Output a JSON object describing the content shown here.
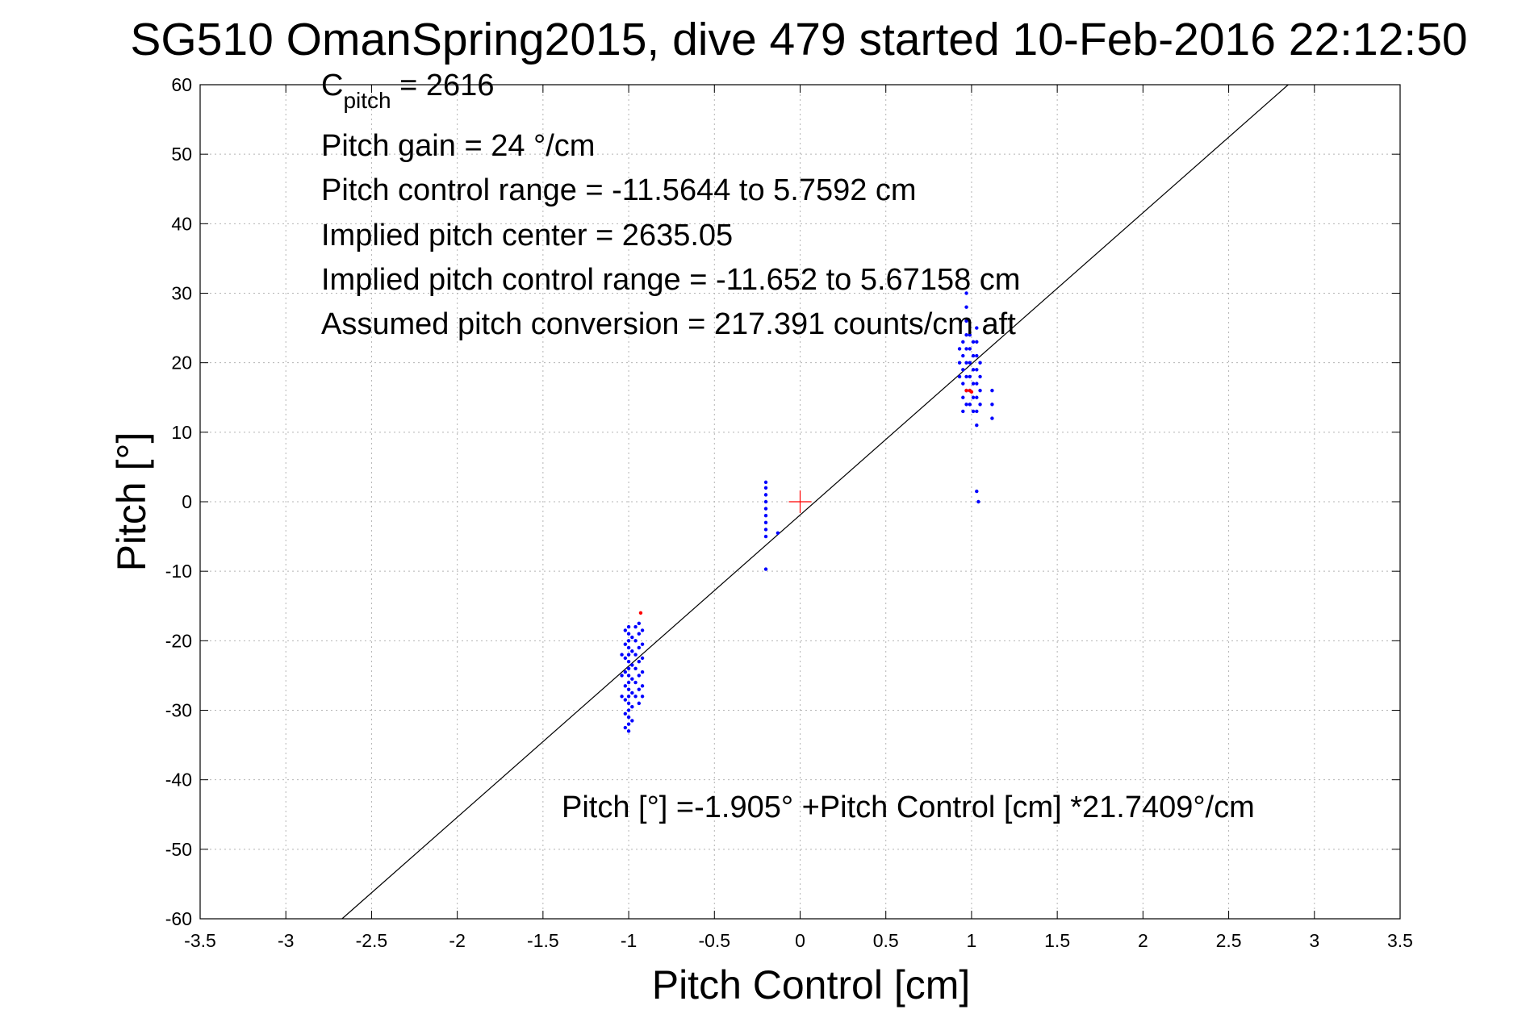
{
  "chart_data": {
    "type": "scatter",
    "title": "SG510 OmanSpring2015, dive 479 started 10-Feb-2016 22:12:50",
    "xlabel": "Pitch Control [cm]",
    "ylabel": "Pitch [°]",
    "xlim": [
      -3.5,
      3.5
    ],
    "ylim": [
      -60,
      60
    ],
    "x_ticks": [
      -3.5,
      -3,
      -2.5,
      -2,
      -1.5,
      -1,
      -0.5,
      0,
      0.5,
      1,
      1.5,
      2,
      2.5,
      3,
      3.5
    ],
    "x_tick_labels": [
      "-3.5",
      "-3",
      "-2.5",
      "-2",
      "-1.5",
      "-1",
      "-0.5",
      "0",
      "0.5",
      "1",
      "1.5",
      "2",
      "2.5",
      "3",
      "3.5"
    ],
    "y_ticks": [
      60,
      50,
      40,
      30,
      20,
      10,
      0,
      -10,
      -20,
      -30,
      -40,
      -50,
      -60
    ],
    "y_tick_labels": [
      "60",
      "50",
      "40",
      "30",
      "20",
      "10",
      "0",
      "-10",
      "-20",
      "-30",
      "-40",
      "-50",
      "-60"
    ],
    "grid": true,
    "fit_line": {
      "intercept": -1.905,
      "slope": 21.7409,
      "color": "#000000"
    },
    "center_marker": {
      "x": 0,
      "y": 0,
      "marker": "plus",
      "color": "#ff0000"
    },
    "series": [
      {
        "color": "#0000ff",
        "marker": "dot",
        "points": [
          [
            -1.0,
            -33.0
          ],
          [
            -1.0,
            -32.0
          ],
          [
            -1.0,
            -31.0
          ],
          [
            -1.0,
            -30.0
          ],
          [
            -1.0,
            -29.0
          ],
          [
            -1.0,
            -28.0
          ],
          [
            -1.0,
            -27.0
          ],
          [
            -1.0,
            -26.0
          ],
          [
            -1.0,
            -25.0
          ],
          [
            -1.0,
            -24.0
          ],
          [
            -1.0,
            -23.0
          ],
          [
            -1.0,
            -22.0
          ],
          [
            -1.0,
            -21.0
          ],
          [
            -1.0,
            -20.0
          ],
          [
            -1.0,
            -19.0
          ],
          [
            -1.0,
            -18.0
          ],
          [
            -1.02,
            -32.5
          ],
          [
            -1.02,
            -30.5
          ],
          [
            -1.02,
            -28.5
          ],
          [
            -1.02,
            -26.5
          ],
          [
            -1.02,
            -24.5
          ],
          [
            -1.02,
            -22.5
          ],
          [
            -1.02,
            -20.5
          ],
          [
            -1.02,
            -18.5
          ],
          [
            -0.98,
            -31.5
          ],
          [
            -0.98,
            -29.5
          ],
          [
            -0.98,
            -27.5
          ],
          [
            -0.98,
            -25.5
          ],
          [
            -0.98,
            -23.5
          ],
          [
            -0.98,
            -21.5
          ],
          [
            -0.98,
            -19.5
          ],
          [
            -0.96,
            -28.0
          ],
          [
            -0.96,
            -26.0
          ],
          [
            -0.96,
            -24.0
          ],
          [
            -0.96,
            -22.0
          ],
          [
            -0.96,
            -20.0
          ],
          [
            -0.96,
            -18.0
          ],
          [
            -0.94,
            -29.0
          ],
          [
            -0.94,
            -27.0
          ],
          [
            -0.94,
            -25.0
          ],
          [
            -0.94,
            -23.0
          ],
          [
            -0.94,
            -21.0
          ],
          [
            -0.94,
            -19.0
          ],
          [
            -0.94,
            -17.5
          ],
          [
            -0.92,
            -28.0
          ],
          [
            -0.92,
            -26.5
          ],
          [
            -0.92,
            -24.5
          ],
          [
            -0.92,
            -22.5
          ],
          [
            -0.92,
            -20.5
          ],
          [
            -0.92,
            -18.5
          ],
          [
            -1.04,
            -28.0
          ],
          [
            -1.04,
            -25.0
          ],
          [
            -1.04,
            -22.0
          ],
          [
            -0.2,
            -9.7
          ],
          [
            -0.2,
            -5.0
          ],
          [
            -0.2,
            -4.0
          ],
          [
            -0.2,
            -3.0
          ],
          [
            -0.2,
            -2.0
          ],
          [
            -0.2,
            -1.0
          ],
          [
            -0.2,
            0.0
          ],
          [
            -0.2,
            1.0
          ],
          [
            -0.2,
            2.0
          ],
          [
            -0.2,
            2.8
          ],
          [
            -0.13,
            -4.5
          ],
          [
            0.95,
            13.0
          ],
          [
            0.95,
            15.0
          ],
          [
            0.95,
            17.0
          ],
          [
            0.95,
            19.0
          ],
          [
            0.95,
            21.0
          ],
          [
            0.95,
            23.0
          ],
          [
            0.93,
            18.0
          ],
          [
            0.93,
            20.0
          ],
          [
            0.93,
            22.0
          ],
          [
            0.97,
            14.0
          ],
          [
            0.97,
            16.0
          ],
          [
            0.97,
            18.0
          ],
          [
            0.97,
            20.0
          ],
          [
            0.97,
            22.0
          ],
          [
            0.97,
            24.0
          ],
          [
            0.97,
            26.0
          ],
          [
            0.97,
            28.0
          ],
          [
            0.97,
            30.0
          ],
          [
            0.99,
            14.0
          ],
          [
            0.99,
            16.0
          ],
          [
            0.99,
            18.0
          ],
          [
            0.99,
            20.0
          ],
          [
            0.99,
            22.0
          ],
          [
            0.99,
            24.0
          ],
          [
            1.01,
            13.0
          ],
          [
            1.01,
            15.0
          ],
          [
            1.01,
            17.0
          ],
          [
            1.01,
            19.0
          ],
          [
            1.01,
            21.0
          ],
          [
            1.01,
            23.0
          ],
          [
            1.03,
            11.0
          ],
          [
            1.03,
            13.0
          ],
          [
            1.03,
            15.0
          ],
          [
            1.03,
            17.0
          ],
          [
            1.03,
            19.0
          ],
          [
            1.03,
            21.0
          ],
          [
            1.03,
            23.0
          ],
          [
            1.03,
            25.0
          ],
          [
            1.05,
            14.0
          ],
          [
            1.05,
            16.0
          ],
          [
            1.05,
            18.0
          ],
          [
            1.05,
            20.0
          ],
          [
            1.12,
            12.0
          ],
          [
            1.12,
            14.0
          ],
          [
            1.12,
            16.0
          ],
          [
            1.03,
            1.5
          ],
          [
            1.04,
            0.0
          ]
        ]
      },
      {
        "color": "#ff0000",
        "marker": "dot",
        "points": [
          [
            -0.93,
            -16.0
          ],
          [
            0.97,
            16.0
          ],
          [
            0.99,
            16.0
          ],
          [
            1.0,
            15.8
          ]
        ]
      }
    ],
    "annotations": {
      "c_pitch_main": "C",
      "c_pitch_sub": "pitch",
      "c_pitch_value": " = 2616",
      "pitch_gain": "Pitch gain = 24 °/cm",
      "pitch_control_range": "Pitch control range = -11.5644 to 5.7592 cm",
      "implied_pitch_center": "Implied pitch center = 2635.05",
      "implied_pitch_control_range": "Implied pitch control range = -11.652 to 5.67158 cm",
      "assumed_pitch_conversion": "Assumed pitch conversion = 217.391 counts/cm aft",
      "fit_equation": "Pitch [°] =-1.905° +Pitch Control [cm] *21.7409°/cm"
    }
  }
}
